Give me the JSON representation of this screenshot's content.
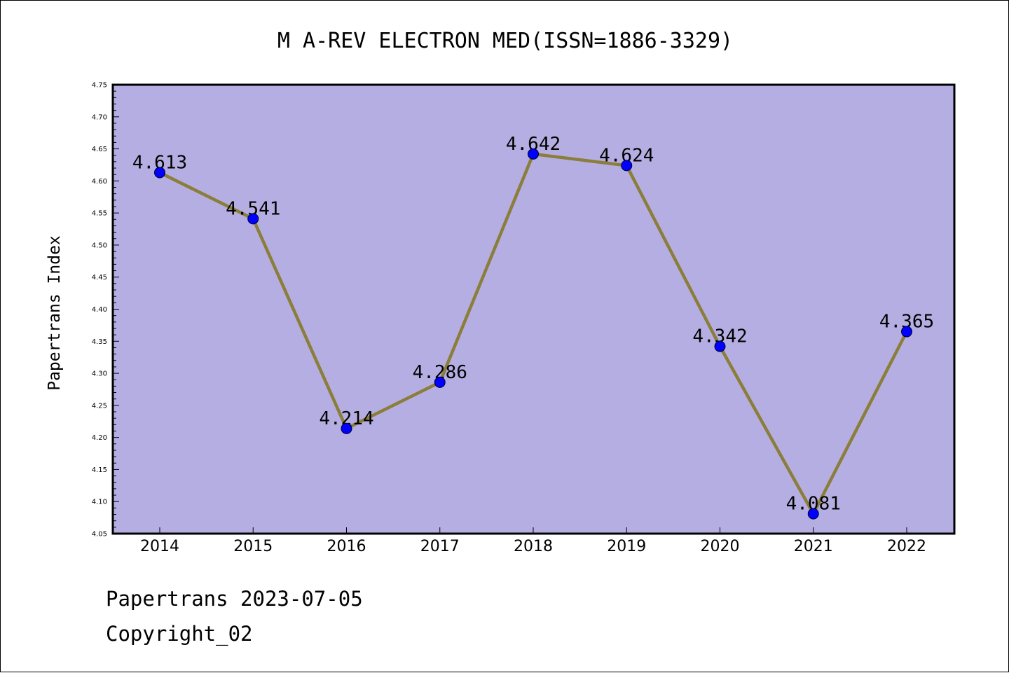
{
  "chart_data": {
    "type": "line",
    "title": "M A-REV ELECTRON MED(ISSN=1886-3329)",
    "xlabel": "",
    "ylabel": "Papertrans Index",
    "categories": [
      "2014",
      "2015",
      "2016",
      "2017",
      "2018",
      "2019",
      "2020",
      "2021",
      "2022"
    ],
    "values": [
      4.613,
      4.541,
      4.214,
      4.286,
      4.642,
      4.624,
      4.342,
      4.081,
      4.365
    ],
    "data_labels": [
      "4.613",
      "4.541",
      "4.214",
      "4.286",
      "4.642",
      "4.624",
      "4.342",
      "4.081",
      "4.365"
    ],
    "ylim": [
      4.05,
      4.75
    ],
    "yticks": [
      "4.05",
      "4.10",
      "4.15",
      "4.20",
      "4.25",
      "4.30",
      "4.35",
      "4.40",
      "4.45",
      "4.50",
      "4.55",
      "4.60",
      "4.65",
      "4.70",
      "4.75"
    ],
    "grid": false,
    "legend": "none",
    "colors": {
      "plot_background": "#b5aee2",
      "line": "#8b7d3a",
      "marker": "#0000ff"
    }
  },
  "footer": {
    "line1": "Papertrans 2023-07-05",
    "line2": "Copyright_02"
  }
}
